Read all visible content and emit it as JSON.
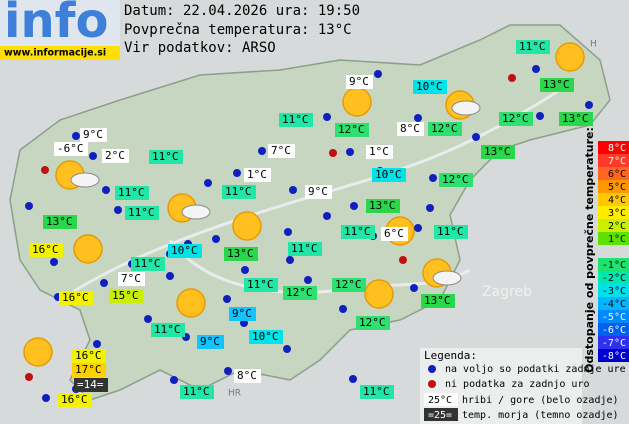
{
  "header": {
    "logo": "info",
    "url": "www.informacije.si",
    "date_line": "Datum: 22.04.2026 ura: 19:50",
    "avg_line": "Povprečna temperatura: 13°C",
    "source_line": "Vir podatkov: ARSO"
  },
  "map_labels": {
    "zagreb": "Zagreb",
    "croatia": "HR",
    "hungary": "H"
  },
  "stations": [
    {
      "label": "11°C",
      "color": "#22e6a6"
    },
    {
      "label": "9°C",
      "color": "#ffffff"
    },
    {
      "label": "10°C",
      "color": "#00e4e8"
    },
    {
      "label": "13°C",
      "color": "#2ad64a"
    },
    {
      "label": "11°C",
      "color": "#22e6a6"
    },
    {
      "label": "12°C",
      "color": "#2ee070"
    },
    {
      "label": "8°C",
      "color": "#ffffff"
    },
    {
      "label": "12°C",
      "color": "#2ee070"
    },
    {
      "label": "12°C",
      "color": "#2ee070"
    },
    {
      "label": "13°C",
      "color": "#2ad64a"
    },
    {
      "label": "9°C",
      "color": "#ffffff"
    },
    {
      "label": "-6°C",
      "color": "#ffffff"
    },
    {
      "label": "2°C",
      "color": "#ffffff"
    },
    {
      "label": "11°C",
      "color": "#22e6a6"
    },
    {
      "label": "7°C",
      "color": "#ffffff"
    },
    {
      "label": "1°C",
      "color": "#ffffff"
    },
    {
      "label": "13°C",
      "color": "#2ad64a"
    },
    {
      "label": "1°C",
      "color": "#ffffff"
    },
    {
      "label": "10°C",
      "color": "#00e4e8"
    },
    {
      "label": "12°C",
      "color": "#2ee070"
    },
    {
      "label": "11°C",
      "color": "#22e6a6"
    },
    {
      "label": "11°C",
      "color": "#22e6a6"
    },
    {
      "label": "9°C",
      "color": "#ffffff"
    },
    {
      "label": "13°C",
      "color": "#2ad64a"
    },
    {
      "label": "11°C",
      "color": "#22e6a6"
    },
    {
      "label": "13°C",
      "color": "#2ad64a"
    },
    {
      "label": "6°C",
      "color": "#ffffff"
    },
    {
      "label": "11°C",
      "color": "#22e6a6"
    },
    {
      "label": "11°C",
      "color": "#22e6a6"
    },
    {
      "label": "10°C",
      "color": "#00e4e8"
    },
    {
      "label": "13°C",
      "color": "#2ad64a"
    },
    {
      "label": "11°C",
      "color": "#22e6a6"
    },
    {
      "label": "16°C",
      "color": "#f2f200"
    },
    {
      "label": "11°C",
      "color": "#22e6a6"
    },
    {
      "label": "7°C",
      "color": "#ffffff"
    },
    {
      "label": "11°C",
      "color": "#22e6a6"
    },
    {
      "label": "12°C",
      "color": "#2ee070"
    },
    {
      "label": "12°C",
      "color": "#2ee070"
    },
    {
      "label": "16°C",
      "color": "#f2f200"
    },
    {
      "label": "15°C",
      "color": "#c8f000"
    },
    {
      "label": "13°C",
      "color": "#2ad64a"
    },
    {
      "label": "9°C",
      "color": "#10c4ff"
    },
    {
      "label": "12°C",
      "color": "#2ee070"
    },
    {
      "label": "11°C",
      "color": "#22e6a6"
    },
    {
      "label": "9°C",
      "color": "#10c4ff"
    },
    {
      "label": "10°C",
      "color": "#00e4e8"
    },
    {
      "label": "16°C",
      "color": "#f2f200"
    },
    {
      "label": "17°C",
      "color": "#ffd000"
    },
    {
      "label": "=14=",
      "color": "#333333"
    },
    {
      "label": "8°C",
      "color": "#ffffff"
    },
    {
      "label": "11°C",
      "color": "#22e6a6"
    },
    {
      "label": "11°C",
      "color": "#22e6a6"
    },
    {
      "label": "16°C",
      "color": "#f2f200"
    }
  ],
  "scale": {
    "title": "Odstopanje od povprečne temperature:",
    "items": [
      {
        "label": "8°C",
        "color": "#ff0000"
      },
      {
        "label": "7°C",
        "color": "#ff3a2a"
      },
      {
        "label": "6°C",
        "color": "#ff6420"
      },
      {
        "label": "5°C",
        "color": "#ff9800"
      },
      {
        "label": "4°C",
        "color": "#ffc800"
      },
      {
        "label": "3°C",
        "color": "#ffec00"
      },
      {
        "label": "2°C",
        "color": "#c8f000"
      },
      {
        "label": "1°C",
        "color": "#5ee000"
      },
      {
        "label": "-1°C",
        "color": "#20e070"
      },
      {
        "label": "-2°C",
        "color": "#00e8b0"
      },
      {
        "label": "-3°C",
        "color": "#00e0e8"
      },
      {
        "label": "-4°C",
        "color": "#00b8ff"
      },
      {
        "label": "-5°C",
        "color": "#0088ff"
      },
      {
        "label": "-6°C",
        "color": "#0060f0"
      },
      {
        "label": "-7°C",
        "color": "#3030f0"
      },
      {
        "label": "-8°C",
        "color": "#0000d0"
      }
    ]
  },
  "legend": {
    "title": "Legenda:",
    "available": "na voljo so podatki zadnje ure",
    "missing": "ni podatka za zadnjo uro",
    "mountain_sample": "25°C",
    "mountain": "hribi / gore (belo ozadje)",
    "sea_sample": "=25=",
    "sea": "temp. morja (temno ozadje)"
  }
}
